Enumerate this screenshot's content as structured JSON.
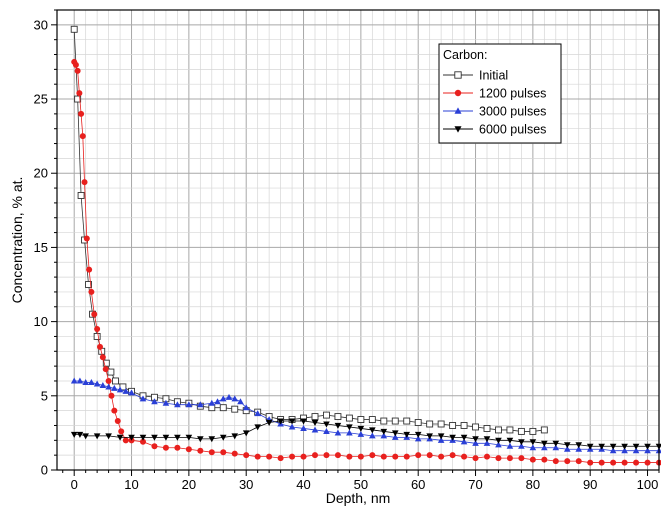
{
  "chart_data": {
    "type": "scatter",
    "xlabel": "Depth, nm",
    "ylabel": "Concentration, % at.",
    "xlim": [
      -3,
      102
    ],
    "ylim": [
      0,
      31
    ],
    "x_ticks": [
      0,
      10,
      20,
      30,
      40,
      50,
      60,
      70,
      80,
      90,
      100
    ],
    "y_ticks": [
      0,
      5,
      10,
      15,
      20,
      25,
      30
    ],
    "grid": true,
    "legend": {
      "title": "Carbon:",
      "position": "top-right"
    },
    "series": [
      {
        "name": "Initial",
        "marker": "open-square",
        "color": "#333333",
        "x": [
          0,
          0.6,
          1.2,
          1.8,
          2.5,
          3.2,
          4.0,
          4.8,
          5.6,
          6.4,
          7.2,
          8.5,
          10,
          12,
          14,
          16,
          18,
          20,
          22,
          24,
          26,
          28,
          30,
          32,
          34,
          36,
          38,
          40,
          42,
          44,
          46,
          48,
          50,
          52,
          54,
          56,
          58,
          60,
          62,
          64,
          66,
          68,
          70,
          72,
          74,
          76,
          78,
          80,
          82
        ],
        "y": [
          29.7,
          25.0,
          18.5,
          15.5,
          12.5,
          10.5,
          9.0,
          8.0,
          7.2,
          6.6,
          6.0,
          5.6,
          5.3,
          5.0,
          4.9,
          4.8,
          4.6,
          4.5,
          4.3,
          4.2,
          4.2,
          4.1,
          4.0,
          3.9,
          3.6,
          3.4,
          3.4,
          3.5,
          3.6,
          3.7,
          3.6,
          3.5,
          3.4,
          3.4,
          3.3,
          3.3,
          3.3,
          3.2,
          3.1,
          3.1,
          3.0,
          3.0,
          2.9,
          2.8,
          2.7,
          2.7,
          2.6,
          2.6,
          2.7
        ]
      },
      {
        "name": "1200 pulses",
        "marker": "filled-circle",
        "color": "#e8201e",
        "x": [
          0,
          0.3,
          0.6,
          0.9,
          1.2,
          1.5,
          1.8,
          2.2,
          2.6,
          3.0,
          3.5,
          4.0,
          4.5,
          5.0,
          5.5,
          6.0,
          6.5,
          7.0,
          7.6,
          8.2,
          9,
          10,
          12,
          14,
          16,
          18,
          20,
          22,
          24,
          26,
          28,
          30,
          32,
          34,
          36,
          38,
          40,
          42,
          44,
          46,
          48,
          50,
          52,
          54,
          56,
          58,
          60,
          62,
          64,
          66,
          68,
          70,
          72,
          74,
          76,
          78,
          80,
          82,
          84,
          86,
          88,
          90,
          92,
          94,
          96,
          98,
          100,
          102
        ],
        "y": [
          27.5,
          27.3,
          26.9,
          25.4,
          24.0,
          22.5,
          19.4,
          15.6,
          13.5,
          12.0,
          10.5,
          9.5,
          8.3,
          7.6,
          6.8,
          6.0,
          5.0,
          4.0,
          3.3,
          2.6,
          2.0,
          2.0,
          1.9,
          1.6,
          1.5,
          1.5,
          1.4,
          1.3,
          1.2,
          1.2,
          1.1,
          1.0,
          0.9,
          0.9,
          0.8,
          0.9,
          0.9,
          1.0,
          1.0,
          1.0,
          0.9,
          0.9,
          1.0,
          0.9,
          0.9,
          0.9,
          1.0,
          1.0,
          0.9,
          1.0,
          0.9,
          0.8,
          0.9,
          0.8,
          0.8,
          0.8,
          0.7,
          0.7,
          0.6,
          0.6,
          0.6,
          0.5,
          0.5,
          0.5,
          0.5,
          0.5,
          0.5,
          0.5
        ]
      },
      {
        "name": "3000 pulses",
        "marker": "filled-triangle-up",
        "color": "#2a3fd6",
        "x": [
          0,
          1,
          2,
          3,
          4,
          5,
          6,
          7,
          8,
          9,
          10,
          12,
          14,
          16,
          18,
          20,
          22,
          24,
          25,
          26,
          27,
          28,
          29,
          30,
          32,
          34,
          36,
          38,
          40,
          42,
          44,
          46,
          48,
          50,
          52,
          54,
          56,
          58,
          60,
          62,
          64,
          66,
          68,
          70,
          72,
          74,
          76,
          78,
          80,
          82,
          84,
          86,
          88,
          90,
          92,
          94,
          96,
          98,
          100,
          102
        ],
        "y": [
          6.0,
          6.0,
          5.9,
          5.9,
          5.8,
          5.7,
          5.6,
          5.5,
          5.4,
          5.3,
          5.2,
          4.8,
          4.6,
          4.5,
          4.4,
          4.4,
          4.4,
          4.5,
          4.6,
          4.8,
          4.9,
          4.8,
          4.6,
          4.2,
          3.8,
          3.4,
          3.1,
          2.9,
          2.8,
          2.7,
          2.6,
          2.5,
          2.5,
          2.4,
          2.3,
          2.3,
          2.2,
          2.2,
          2.1,
          2.1,
          2.0,
          2.0,
          1.9,
          1.8,
          1.8,
          1.7,
          1.6,
          1.6,
          1.5,
          1.5,
          1.5,
          1.4,
          1.4,
          1.4,
          1.4,
          1.3,
          1.3,
          1.3,
          1.3,
          1.3
        ]
      },
      {
        "name": "6000 pulses",
        "marker": "filled-triangle-down",
        "color": "#000000",
        "x": [
          0,
          1,
          2,
          4,
          6,
          8,
          10,
          12,
          14,
          16,
          18,
          20,
          22,
          24,
          26,
          28,
          30,
          32,
          34,
          36,
          38,
          40,
          42,
          44,
          46,
          48,
          50,
          52,
          54,
          56,
          58,
          60,
          62,
          64,
          66,
          68,
          70,
          72,
          74,
          76,
          78,
          80,
          82,
          84,
          86,
          88,
          90,
          92,
          94,
          96,
          98,
          100,
          102
        ],
        "y": [
          2.4,
          2.4,
          2.3,
          2.3,
          2.3,
          2.2,
          2.2,
          2.2,
          2.2,
          2.2,
          2.2,
          2.2,
          2.1,
          2.1,
          2.2,
          2.3,
          2.5,
          2.9,
          3.2,
          3.3,
          3.3,
          3.3,
          3.2,
          3.1,
          3.0,
          2.9,
          2.8,
          2.7,
          2.6,
          2.5,
          2.4,
          2.4,
          2.3,
          2.3,
          2.2,
          2.2,
          2.1,
          2.1,
          2.0,
          2.0,
          1.9,
          1.9,
          1.8,
          1.8,
          1.7,
          1.7,
          1.6,
          1.6,
          1.6,
          1.6,
          1.6,
          1.6,
          1.6
        ]
      }
    ]
  }
}
